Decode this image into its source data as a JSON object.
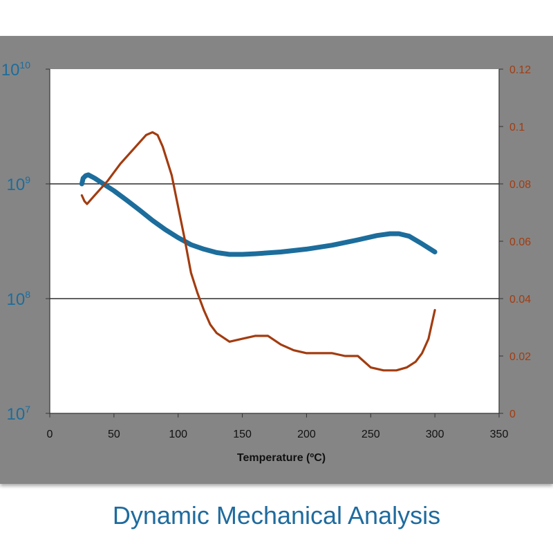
{
  "caption": "Dynamic Mechanical Analysis",
  "colors": {
    "panel": "#858585",
    "plot_area": "#ffffff",
    "modulus": "#1c6d9c",
    "tan_delta": "#a23c10",
    "caption": "#1f6b9e"
  },
  "chart_data": {
    "type": "line",
    "xlabel": "Temperature (ºC)",
    "xlim": [
      0,
      350
    ],
    "x_ticks": [
      "0",
      "50",
      "100",
      "150",
      "200",
      "250",
      "300",
      "350"
    ],
    "y_left": {
      "scale": "log",
      "lim": [
        10000000,
        10000000000
      ],
      "tick_exponents": [
        "7",
        "8",
        "9",
        "10"
      ],
      "tick_base": "10",
      "gridlines_at": [
        100000000,
        1000000000
      ]
    },
    "y_right": {
      "scale": "linear",
      "lim": [
        0,
        0.12
      ],
      "ticks": [
        "0",
        "0.02",
        "0.04",
        "0.06",
        "0.08",
        "0.1",
        "0.12"
      ]
    },
    "series": [
      {
        "axis": "left",
        "points": [
          [
            25,
            1000000000
          ],
          [
            26,
            1120000000
          ],
          [
            28,
            1180000000
          ],
          [
            30,
            1200000000
          ],
          [
            35,
            1120000000
          ],
          [
            40,
            1030000000
          ],
          [
            50,
            870000000
          ],
          [
            60,
            720000000
          ],
          [
            70,
            590000000
          ],
          [
            80,
            480000000
          ],
          [
            90,
            400000000
          ],
          [
            100,
            340000000
          ],
          [
            110,
            295000000
          ],
          [
            120,
            270000000
          ],
          [
            130,
            252000000
          ],
          [
            140,
            243000000
          ],
          [
            150,
            243000000
          ],
          [
            160,
            246000000
          ],
          [
            180,
            255000000
          ],
          [
            200,
            270000000
          ],
          [
            220,
            292000000
          ],
          [
            240,
            325000000
          ],
          [
            255,
            355000000
          ],
          [
            265,
            368000000
          ],
          [
            272,
            368000000
          ],
          [
            280,
            350000000
          ],
          [
            290,
            300000000
          ],
          [
            300,
            255000000
          ]
        ]
      },
      {
        "axis": "right",
        "points": [
          [
            25,
            0.076
          ],
          [
            27,
            0.074
          ],
          [
            29,
            0.073
          ],
          [
            35,
            0.076
          ],
          [
            45,
            0.081
          ],
          [
            55,
            0.087
          ],
          [
            65,
            0.092
          ],
          [
            75,
            0.097
          ],
          [
            80,
            0.098
          ],
          [
            84,
            0.097
          ],
          [
            88,
            0.093
          ],
          [
            95,
            0.083
          ],
          [
            100,
            0.072
          ],
          [
            105,
            0.061
          ],
          [
            110,
            0.049
          ],
          [
            115,
            0.042
          ],
          [
            120,
            0.036
          ],
          [
            125,
            0.031
          ],
          [
            130,
            0.028
          ],
          [
            140,
            0.025
          ],
          [
            150,
            0.026
          ],
          [
            160,
            0.027
          ],
          [
            170,
            0.027
          ],
          [
            180,
            0.024
          ],
          [
            190,
            0.022
          ],
          [
            200,
            0.021
          ],
          [
            210,
            0.021
          ],
          [
            220,
            0.021
          ],
          [
            230,
            0.02
          ],
          [
            240,
            0.02
          ],
          [
            250,
            0.016
          ],
          [
            260,
            0.015
          ],
          [
            270,
            0.015
          ],
          [
            278,
            0.016
          ],
          [
            285,
            0.018
          ],
          [
            290,
            0.021
          ],
          [
            295,
            0.026
          ],
          [
            300,
            0.036
          ]
        ]
      }
    ]
  }
}
